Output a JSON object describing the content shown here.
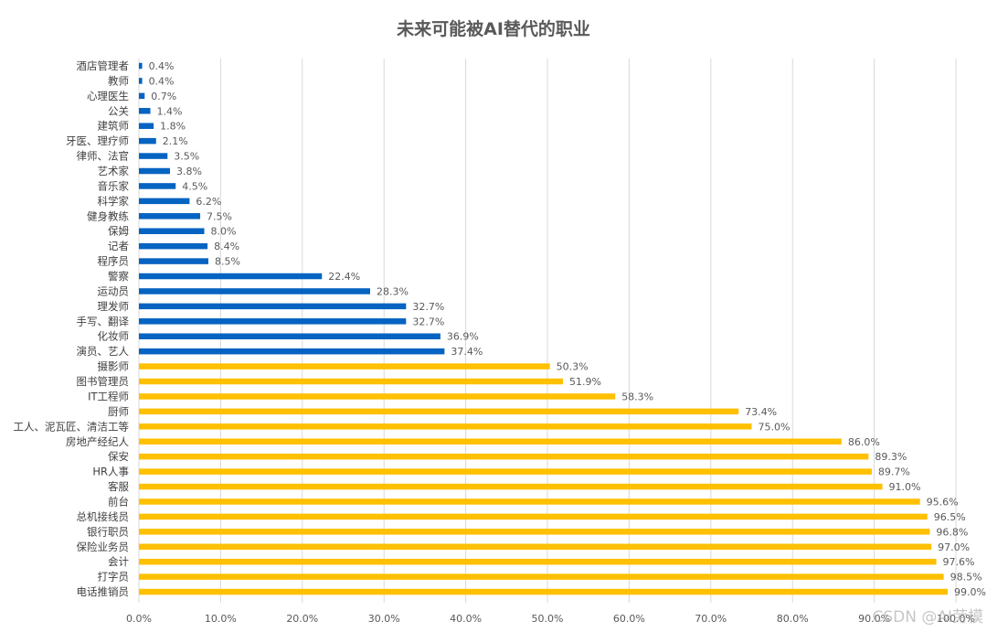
{
  "chart_data": {
    "type": "bar",
    "orientation": "horizontal",
    "title": "未来可能被AI替代的职业",
    "xlabel": "",
    "ylabel": "",
    "xlim": [
      0,
      100
    ],
    "x_ticks": [
      "0.0%",
      "10.0%",
      "20.0%",
      "30.0%",
      "40.0%",
      "50.0%",
      "60.0%",
      "70.0%",
      "80.0%",
      "90.0%",
      "100.0%"
    ],
    "grid": true,
    "categories": [
      "酒店管理者",
      "教师",
      "心理医生",
      "公关",
      "建筑师",
      "牙医、理疗师",
      "律师、法官",
      "艺术家",
      "音乐家",
      "科学家",
      "健身教练",
      "保姆",
      "记者",
      "程序员",
      "警察",
      "运动员",
      "理发师",
      "手写、翻译",
      "化妆师",
      "演员、艺人",
      "摄影师",
      "图书管理员",
      "IT工程师",
      "厨师",
      "工人、泥瓦匠、清洁工等",
      "房地产经纪人",
      "保安",
      "HR人事",
      "客服",
      "前台",
      "总机接线员",
      "银行职员",
      "保险业务员",
      "会计",
      "打字员",
      "电话推销员"
    ],
    "values": [
      0.4,
      0.4,
      0.7,
      1.4,
      1.8,
      2.1,
      3.5,
      3.8,
      4.5,
      6.2,
      7.5,
      8.0,
      8.4,
      8.5,
      22.4,
      28.3,
      32.7,
      32.7,
      36.9,
      37.4,
      50.3,
      51.9,
      58.3,
      73.4,
      75.0,
      86.0,
      89.3,
      89.7,
      91.0,
      95.6,
      96.5,
      96.8,
      97.0,
      97.6,
      98.5,
      99.0
    ],
    "value_labels": [
      "0.4%",
      "0.4%",
      "0.7%",
      "1.4%",
      "1.8%",
      "2.1%",
      "3.5%",
      "3.8%",
      "4.5%",
      "6.2%",
      "7.5%",
      "8.0%",
      "8.4%",
      "8.5%",
      "22.4%",
      "28.3%",
      "32.7%",
      "32.7%",
      "36.9%",
      "37.4%",
      "50.3%",
      "51.9%",
      "58.3%",
      "73.4%",
      "75.0%",
      "86.0%",
      "89.3%",
      "89.7%",
      "91.0%",
      "95.6%",
      "96.5%",
      "96.8%",
      "97.0%",
      "97.6%",
      "98.5%",
      "99.0%"
    ],
    "threshold": 50,
    "colors": {
      "below_threshold": "#0563C1",
      "above_threshold": "#FFC000"
    }
  },
  "watermark": "CSDN @AI劳模"
}
